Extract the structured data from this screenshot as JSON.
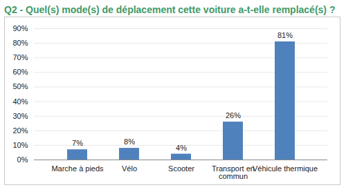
{
  "chart_data": {
    "type": "bar",
    "title": "Q2 - Quel(s) mode(s) de déplacement cette voiture a-t-elle remplacé(s) ?",
    "categories": [
      "Marche à pieds",
      "Vélo",
      "Scooter",
      "Transport en commun",
      "Véhicule thermique"
    ],
    "values": [
      7,
      8,
      4,
      26,
      81
    ],
    "value_labels": [
      "7%",
      "8%",
      "4%",
      "26%",
      "81%"
    ],
    "data_labels": true,
    "color": "#4f81bd",
    "ylim": [
      0,
      90
    ],
    "yticks": [
      {
        "value": 0,
        "label": "0%"
      },
      {
        "value": 10,
        "label": "10%"
      },
      {
        "value": 20,
        "label": "20%"
      },
      {
        "value": 30,
        "label": "30%"
      },
      {
        "value": 40,
        "label": "40%"
      },
      {
        "value": 50,
        "label": "50%"
      },
      {
        "value": 60,
        "label": "60%"
      },
      {
        "value": 70,
        "label": "70%"
      },
      {
        "value": 80,
        "label": "80%"
      },
      {
        "value": 90,
        "label": "90%"
      }
    ],
    "grid": true
  }
}
